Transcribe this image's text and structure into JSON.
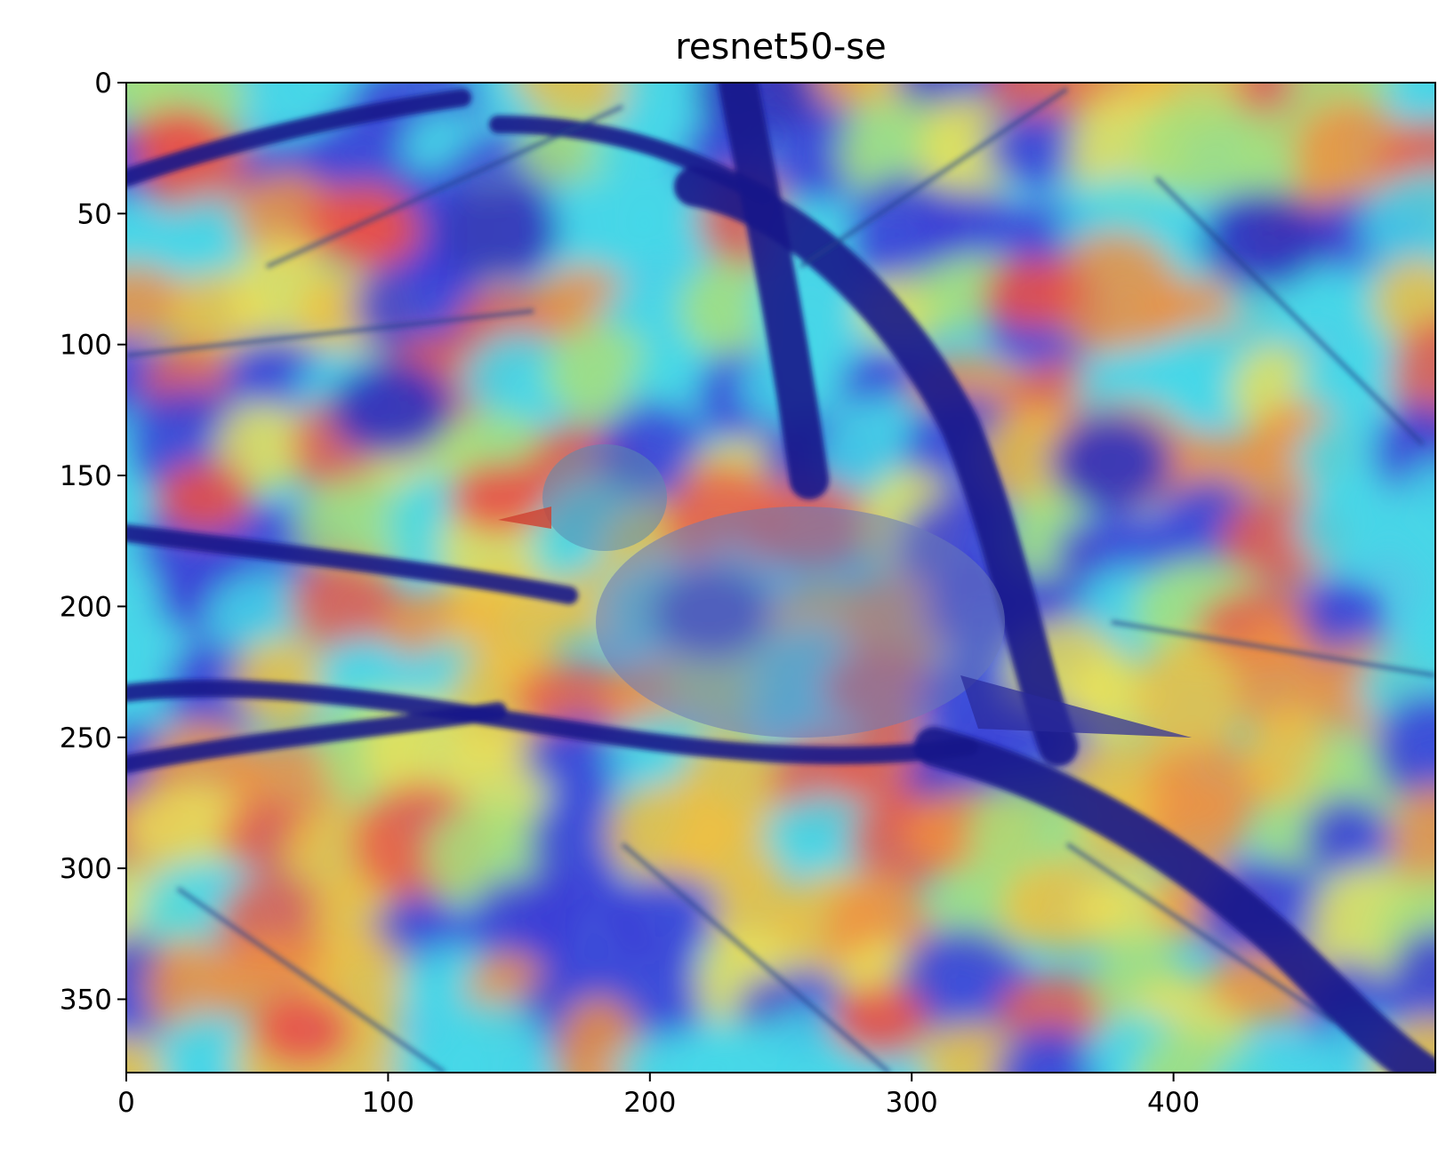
{
  "title": "resnet50-se",
  "axes": {
    "x_ticks": [
      0,
      100,
      200,
      300,
      400
    ],
    "y_ticks": [
      0,
      50,
      100,
      150,
      200,
      250,
      300,
      350
    ],
    "x_range": [
      0,
      500
    ],
    "y_range": [
      0,
      378
    ],
    "y_inverted": true
  },
  "overlay": {
    "type": "grad-cam heatmap over photo",
    "colormap": "jet",
    "subject": "bird perched on branches"
  }
}
